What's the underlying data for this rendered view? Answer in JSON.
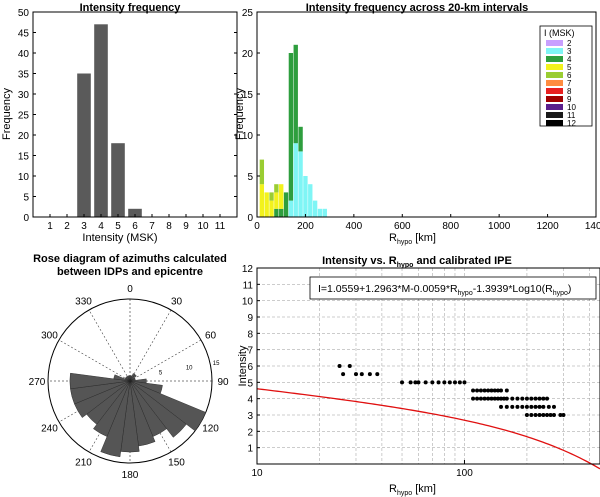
{
  "chart_data": [
    {
      "type": "bar",
      "title": "Intensity frequency",
      "xlabel": "Intensity (MSK)",
      "ylabel": "Frequency",
      "categories": [
        "1",
        "2",
        "3",
        "4",
        "5",
        "6",
        "7",
        "8",
        "9",
        "10",
        "11"
      ],
      "values": [
        0,
        0,
        35,
        47,
        18,
        2,
        0,
        0,
        0,
        0,
        0
      ],
      "xlim": [
        0,
        12
      ],
      "ylim": [
        0,
        50
      ],
      "yticks": [
        0,
        5,
        10,
        15,
        20,
        25,
        30,
        35,
        40,
        45,
        50
      ],
      "color": "#5a5a5a",
      "grid": false
    },
    {
      "type": "bar",
      "stacked": true,
      "title_main": "Intensity frequency across 20-km intervals",
      "xlabel_main": "R",
      "xlabel_sub": "hypo",
      "xlabel_unit": " [km]",
      "ylabel": "Frequency",
      "xlim": [
        0,
        1400
      ],
      "ylim": [
        0,
        25
      ],
      "xticks": [
        0,
        200,
        400,
        600,
        800,
        1000,
        1200,
        1400
      ],
      "yticks": [
        0,
        5,
        10,
        15,
        20,
        25
      ],
      "bin_width": 20,
      "legend_title": "I (MSK)",
      "legend_position": "top-right",
      "series": [
        {
          "name": "2",
          "color": "#c8a0ff",
          "x": [],
          "values": []
        },
        {
          "name": "3",
          "color": "#7ff5f5",
          "x": [
            140,
            160,
            180,
            200,
            220,
            240,
            260,
            280
          ],
          "values": [
            2,
            9,
            8,
            5,
            4,
            2,
            1,
            1
          ]
        },
        {
          "name": "4",
          "color": "#2e9e3e",
          "x": [
            80,
            100,
            120,
            140,
            160,
            180
          ],
          "values": [
            1,
            1,
            3,
            18,
            12,
            3
          ]
        },
        {
          "name": "5",
          "color": "#f2f21c",
          "x": [
            20,
            40,
            60,
            80,
            100
          ],
          "values": [
            4,
            3,
            2,
            2,
            3
          ]
        },
        {
          "name": "6",
          "color": "#9acd32",
          "x": [
            20,
            60,
            80
          ],
          "values": [
            3,
            1,
            1
          ]
        },
        {
          "name": "7",
          "color": "#ff8c40",
          "x": [],
          "values": []
        },
        {
          "name": "8",
          "color": "#e82020",
          "x": [],
          "values": []
        },
        {
          "name": "9",
          "color": "#a00000",
          "x": [],
          "values": []
        },
        {
          "name": "10",
          "color": "#5a1e8c",
          "x": [],
          "values": []
        },
        {
          "name": "11",
          "color": "#1a1a1a",
          "x": [],
          "values": []
        },
        {
          "name": "12",
          "color": "#000000",
          "x": [],
          "values": []
        }
      ]
    },
    {
      "type": "rose",
      "title_line1": "Rose diagram of azimuths calculated",
      "title_line2": "between  IDPs and epicentre",
      "angle_labels": [
        "0",
        "30",
        "60",
        "90",
        "120",
        "150",
        "180",
        "210",
        "240",
        "270",
        "300",
        "330"
      ],
      "radial_ticks": [
        5,
        10,
        15
      ],
      "rmax": 15,
      "sector_width_deg": 15,
      "color": "#555555",
      "sectors": [
        {
          "az": 15,
          "count": 1
        },
        {
          "az": 30,
          "count": 1.5
        },
        {
          "az": 45,
          "count": 1.5
        },
        {
          "az": 60,
          "count": 1
        },
        {
          "az": 75,
          "count": 1
        },
        {
          "az": 90,
          "count": 3
        },
        {
          "az": 105,
          "count": 6
        },
        {
          "az": 120,
          "count": 15
        },
        {
          "az": 135,
          "count": 13
        },
        {
          "az": 150,
          "count": 11
        },
        {
          "az": 165,
          "count": 12
        },
        {
          "az": 180,
          "count": 13
        },
        {
          "az": 195,
          "count": 14
        },
        {
          "az": 210,
          "count": 11
        },
        {
          "az": 225,
          "count": 10
        },
        {
          "az": 240,
          "count": 11
        },
        {
          "az": 255,
          "count": 11
        },
        {
          "az": 270,
          "count": 11
        },
        {
          "az": 285,
          "count": 3
        },
        {
          "az": 300,
          "count": 1
        },
        {
          "az": 315,
          "count": 1
        },
        {
          "az": 330,
          "count": 1
        },
        {
          "az": 345,
          "count": 1
        },
        {
          "az": 0,
          "count": 1
        }
      ]
    },
    {
      "type": "scatter",
      "title_pre": "Intensity vs. R",
      "title_sub": "hypo",
      "title_post": " and calibrated IPE",
      "xlabel_main": "R",
      "xlabel_sub": "hypo",
      "xlabel_unit": " [km]",
      "ylabel": "Intensity",
      "xscale": "log",
      "xlim": [
        10,
        450
      ],
      "ylim": [
        0,
        12
      ],
      "xticks": [
        10,
        100
      ],
      "yticks": [
        1,
        2,
        3,
        4,
        5,
        6,
        7,
        8,
        9,
        10,
        11,
        12
      ],
      "grid": true,
      "equation": {
        "p1": "I=1.0559+1.2963*M-0.0059*R",
        "s1": "hypo",
        "p2": "-1.3939*Log10(R",
        "s2": "hypo",
        "p3": ")"
      },
      "curve": {
        "a": 1.0559,
        "b": 1.2963,
        "M": 3.86,
        "c": -0.0059,
        "d": -1.3939,
        "color": "#e01010"
      },
      "points": [
        [
          25,
          6
        ],
        [
          26,
          5.5
        ],
        [
          28,
          6
        ],
        [
          30,
          5.5
        ],
        [
          32,
          5.5
        ],
        [
          35,
          5.5
        ],
        [
          38,
          5.5
        ],
        [
          50,
          5
        ],
        [
          55,
          5
        ],
        [
          58,
          5
        ],
        [
          60,
          5
        ],
        [
          65,
          5
        ],
        [
          70,
          5
        ],
        [
          75,
          5
        ],
        [
          80,
          5
        ],
        [
          85,
          5
        ],
        [
          90,
          5
        ],
        [
          95,
          5
        ],
        [
          100,
          5
        ],
        [
          110,
          4.5
        ],
        [
          115,
          4.5
        ],
        [
          120,
          4.5
        ],
        [
          125,
          4.5
        ],
        [
          130,
          4.5
        ],
        [
          135,
          4.5
        ],
        [
          140,
          4.5
        ],
        [
          145,
          4.5
        ],
        [
          150,
          4.5
        ],
        [
          160,
          4.5
        ],
        [
          115,
          4
        ],
        [
          120,
          4
        ],
        [
          125,
          4
        ],
        [
          130,
          4
        ],
        [
          135,
          4
        ],
        [
          140,
          4
        ],
        [
          145,
          4
        ],
        [
          150,
          4
        ],
        [
          155,
          4
        ],
        [
          160,
          4
        ],
        [
          170,
          4
        ],
        [
          180,
          4
        ],
        [
          190,
          4
        ],
        [
          200,
          4
        ],
        [
          210,
          4
        ],
        [
          220,
          4
        ],
        [
          230,
          4
        ],
        [
          240,
          4
        ],
        [
          250,
          4
        ],
        [
          150,
          3.5
        ],
        [
          160,
          3.5
        ],
        [
          170,
          3.5
        ],
        [
          180,
          3.5
        ],
        [
          190,
          3.5
        ],
        [
          200,
          3.5
        ],
        [
          210,
          3.5
        ],
        [
          220,
          3.5
        ],
        [
          230,
          3.5
        ],
        [
          240,
          3.5
        ],
        [
          255,
          3.5
        ],
        [
          270,
          3.5
        ],
        [
          110,
          4
        ],
        [
          200,
          3
        ],
        [
          210,
          3
        ],
        [
          220,
          3
        ],
        [
          230,
          3
        ],
        [
          240,
          3
        ],
        [
          250,
          3
        ],
        [
          260,
          3
        ],
        [
          270,
          3
        ],
        [
          290,
          3
        ],
        [
          300,
          3
        ]
      ]
    }
  ]
}
